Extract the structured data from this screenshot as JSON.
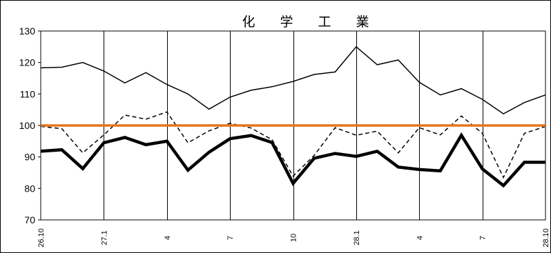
{
  "chart_data": {
    "type": "line",
    "title": "化 学 工 業",
    "xlabel": "",
    "ylabel": "",
    "ylim": [
      70,
      130
    ],
    "y_ticks": [
      70,
      80,
      90,
      100,
      110,
      120,
      130
    ],
    "grid": "vertical",
    "legend": "none",
    "x": [
      "26.10",
      "26.11",
      "26.12",
      "27.1",
      "27.2",
      "27.3",
      "27.4",
      "27.5",
      "27.6",
      "27.7",
      "27.8",
      "27.9",
      "27.10",
      "27.11",
      "27.12",
      "28.1",
      "28.2",
      "28.3",
      "28.4",
      "28.5",
      "28.6",
      "28.7",
      "28.8",
      "28.9",
      "28.10"
    ],
    "x_tick_labels": [
      {
        "index": 0,
        "label": "26.10"
      },
      {
        "index": 3,
        "label": "27.1"
      },
      {
        "index": 6,
        "label": "4"
      },
      {
        "index": 9,
        "label": "7"
      },
      {
        "index": 12,
        "label": "10"
      },
      {
        "index": 15,
        "label": "28.1"
      },
      {
        "index": 18,
        "label": "4"
      },
      {
        "index": 21,
        "label": "7"
      },
      {
        "index": 24,
        "label": "28.10"
      }
    ],
    "series": [
      {
        "style": "thin-solid",
        "color": "#000000",
        "values": [
          118.3,
          118.5,
          120.0,
          117.3,
          113.5,
          116.8,
          113.0,
          110.0,
          105.2,
          109.0,
          111.2,
          112.3,
          114.0,
          116.2,
          117.0,
          125.0,
          119.3,
          120.8,
          113.7,
          109.7,
          111.7,
          108.3,
          103.7,
          107.3,
          109.7
        ]
      },
      {
        "style": "dashed",
        "color": "#000000",
        "values": [
          99.7,
          99.0,
          91.3,
          97.0,
          103.3,
          102.0,
          104.3,
          94.5,
          98.3,
          100.7,
          99.2,
          95.5,
          83.9,
          90.5,
          99.3,
          96.9,
          98.2,
          91.3,
          99.3,
          97.0,
          103.0,
          97.5,
          83.5,
          97.5,
          99.7
        ]
      },
      {
        "style": "thick-solid",
        "color": "#000000",
        "values": [
          91.8,
          92.3,
          86.3,
          94.5,
          96.2,
          93.9,
          95.0,
          85.8,
          91.5,
          95.8,
          96.8,
          94.6,
          81.6,
          89.6,
          91.1,
          90.2,
          91.8,
          86.8,
          86.0,
          85.6,
          96.9,
          86.2,
          80.9,
          88.3,
          88.3
        ]
      },
      {
        "style": "reference",
        "color": "#E8731C",
        "values": [
          100,
          100,
          100,
          100,
          100,
          100,
          100,
          100,
          100,
          100,
          100,
          100,
          100,
          100,
          100,
          100,
          100,
          100,
          100,
          100,
          100,
          100,
          100,
          100,
          100
        ]
      }
    ]
  }
}
